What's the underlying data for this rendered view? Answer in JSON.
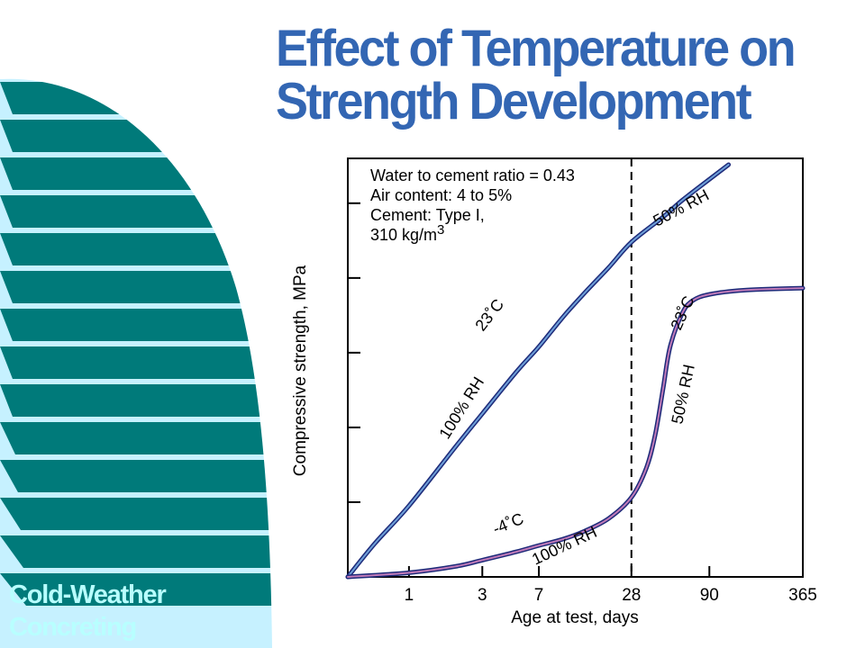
{
  "slide": {
    "title_line1": "Effect of Temperature on",
    "title_line2": "Strength Development",
    "footer_line1": "Cold-Weather",
    "footer_line2": "Concreting"
  },
  "colors": {
    "title": "#3366b3",
    "fan_teal": "#007a7a",
    "fan_light": "#c6f1ff",
    "footer_text": "#b8ffff",
    "curve_outer": "#1e2b7a",
    "curve_inner": "#6e9fd8",
    "curve_lower_inner": "#c07ab8"
  },
  "chart_data": {
    "type": "line",
    "x_scale": "log",
    "x_ticks": [
      1,
      3,
      7,
      28,
      90,
      365
    ],
    "x_tick_labels": [
      "1",
      "3",
      "7",
      "28",
      "90",
      "365"
    ],
    "xlim": [
      0.4,
      365
    ],
    "xlabel": "Age at test, days",
    "ylabel": "Compressive strength, MPa",
    "y_tick_count": 5,
    "y_values_relative": true,
    "ylim": [
      0,
      1
    ],
    "grid": false,
    "reference_line": {
      "x": 28,
      "style": "dashed"
    },
    "annotations": {
      "notes": [
        "Water to cement ratio = 0.43",
        "Air content: 4 to 5%",
        "Cement: Type I,",
        "310 kg/m"
      ],
      "note_superscript": "3"
    },
    "series": [
      {
        "labels": [
          "23˚C",
          "100% RH",
          "50% RH"
        ],
        "x": [
          0.4,
          0.6,
          1,
          2,
          3,
          5,
          7,
          10,
          14,
          20,
          28,
          45,
          60,
          90,
          120
        ],
        "y": [
          0.0,
          0.08,
          0.17,
          0.31,
          0.39,
          0.49,
          0.55,
          0.62,
          0.68,
          0.74,
          0.8,
          0.86,
          0.9,
          0.95,
          0.985
        ]
      },
      {
        "labels": [
          "-4˚C",
          "100% RH",
          "23˚C",
          "50% RH"
        ],
        "x": [
          0.4,
          1,
          2,
          3,
          5,
          7,
          10,
          14,
          20,
          28,
          35,
          40,
          45,
          50,
          60,
          70,
          90,
          150,
          365
        ],
        "y": [
          0.0,
          0.01,
          0.025,
          0.04,
          0.06,
          0.075,
          0.09,
          0.11,
          0.14,
          0.19,
          0.26,
          0.34,
          0.45,
          0.55,
          0.63,
          0.66,
          0.675,
          0.685,
          0.69
        ]
      }
    ]
  }
}
